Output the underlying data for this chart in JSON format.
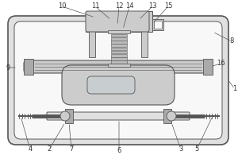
{
  "line_color": "#555555",
  "fill_outer": "#e0e0e0",
  "fill_white": "#f8f8f8",
  "fill_mid": "#cccccc",
  "fill_dark": "#aaaaaa",
  "fill_spring": "#bbbbbb",
  "label_color": "#333333",
  "label_fontsize": 6.0
}
